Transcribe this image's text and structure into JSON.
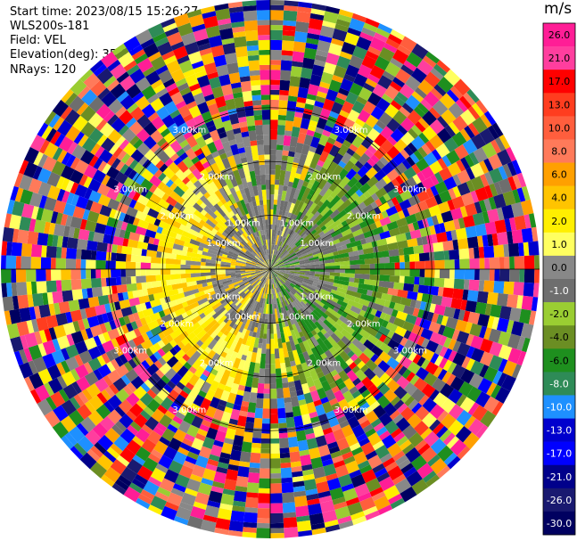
{
  "info": {
    "start_time": "Start time: 2023/08/15 15:26:27",
    "instrument": "WLS200s-181",
    "field": "Field: VEL",
    "elevation": "Elevation(deg): 35.30",
    "nrays": "NRays: 120"
  },
  "chart_data": {
    "type": "heatmap",
    "projection": "polar-ppi",
    "field": "VEL",
    "elevation_deg": 35.3,
    "nrays": 120,
    "ring_labels_km": [
      "1.00km",
      "2.00km",
      "3.00km"
    ],
    "range_rings_km": [
      1,
      2,
      3
    ],
    "max_range_km": 5,
    "colorbar": {
      "unit": "m/s",
      "ticks": [
        "26.0",
        "21.0",
        "17.0",
        "13.0",
        "10.0",
        "8.0",
        "6.0",
        "4.0",
        "2.0",
        "1.0",
        "0.0",
        "-1.0",
        "-2.0",
        "-4.0",
        "-6.0",
        "-8.0",
        "-10.0",
        "-13.0",
        "-17.0",
        "-21.0",
        "-26.0",
        "-30.0"
      ],
      "colors": [
        "#ff1e96",
        "#ff3e9e",
        "#ff0000",
        "#ff3d1f",
        "#ff5e3d",
        "#ff7a5a",
        "#ffa000",
        "#ffc400",
        "#ffef00",
        "#ffff60",
        "#888888",
        "#6e6e6e",
        "#9acd32",
        "#6b8e23",
        "#1e8f1e",
        "#2e8b57",
        "#1e90ff",
        "#0000cd",
        "#0000ff",
        "#00008b",
        "#191970",
        "#000060"
      ]
    }
  }
}
